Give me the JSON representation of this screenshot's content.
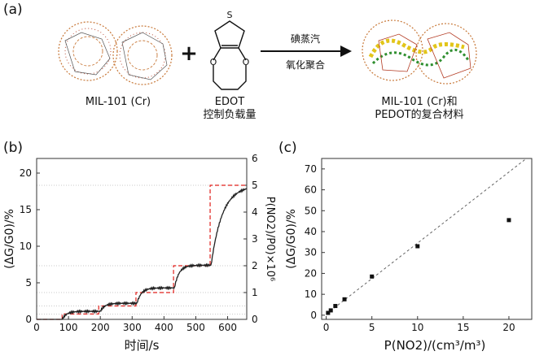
{
  "panels": {
    "a": "(a)",
    "b": "(b)",
    "c": "(c)"
  },
  "scheme": {
    "mof_label": "MIL-101 (Cr)",
    "plus": "+",
    "edot_label": "EDOT",
    "edot_sub": "控制负载量",
    "arrow_top": "碘蒸汽",
    "arrow_bottom": "氧化聚合",
    "product_line1": "MIL-101 (Cr)和",
    "product_line2": "PEDOT的复合材料",
    "atom_s": "S",
    "atom_o1": "O",
    "atom_o2": "O"
  },
  "colors": {
    "trace": "#222222",
    "step": "#e0201c",
    "grid": "#b8b8b8",
    "frame": "#333333",
    "mof_orange": "#c8793a",
    "mof_red": "#b33a22",
    "pedot_yellow": "#e2c51a",
    "pedot_green": "#2f8f2f"
  },
  "chart_data": [
    {
      "type": "line",
      "panel": "(b)",
      "xlabel": "时间/s",
      "ylabel_left": "(ΔG/G0)/%",
      "ylabel_right": "P(NO2)/P0)×10⁶",
      "xlim": [
        0,
        660
      ],
      "ylim_left": [
        0,
        22
      ],
      "ylim_right": [
        0,
        6
      ],
      "xticks": [
        0,
        100,
        200,
        300,
        400,
        500,
        600
      ],
      "yticks_left": [
        0,
        5,
        10,
        15,
        20
      ],
      "yticks_right": [
        0,
        1,
        2,
        3,
        4,
        5,
        6
      ],
      "series": [
        {
          "name": "ΔG/G0",
          "axis": "left",
          "segments": [
            {
              "start": 80,
              "end": 200,
              "level": 1.1
            },
            {
              "start": 200,
              "end": 315,
              "level": 2.2
            },
            {
              "start": 315,
              "end": 433,
              "level": 4.3
            },
            {
              "start": 433,
              "end": 548,
              "level": 7.4
            },
            {
              "start": 548,
              "end": 660,
              "level": 18.3
            }
          ]
        },
        {
          "name": "P(NO2)/P0 ×10⁶",
          "axis": "right",
          "style": "dashed",
          "steps": [
            {
              "x": 0,
              "y": 0
            },
            {
              "x": 80,
              "y": 0.2
            },
            {
              "x": 195,
              "y": 0.5
            },
            {
              "x": 312,
              "y": 1
            },
            {
              "x": 430,
              "y": 2
            },
            {
              "x": 545,
              "y": 5
            },
            {
              "x": 660,
              "y": 5
            }
          ]
        }
      ]
    },
    {
      "type": "scatter",
      "panel": "(c)",
      "xlabel": "P(NO2)/(cm³/m³)",
      "ylabel": "(ΔG/G0)/%",
      "xlim": [
        -0.5,
        22.5
      ],
      "ylim": [
        -2,
        75
      ],
      "xticks": [
        0,
        5,
        10,
        15,
        20
      ],
      "yticks": [
        0,
        10,
        20,
        30,
        40,
        50,
        60,
        70
      ],
      "points": [
        {
          "x": 0.2,
          "y": 1.1
        },
        {
          "x": 0.5,
          "y": 2.3
        },
        {
          "x": 1,
          "y": 4.4
        },
        {
          "x": 2,
          "y": 7.6
        },
        {
          "x": 5,
          "y": 18.5
        },
        {
          "x": 10,
          "y": 33
        },
        {
          "x": 20,
          "y": 45.5
        }
      ],
      "fit_line": {
        "slope": 3.4,
        "intercept": 0.5,
        "style": "dashed"
      }
    }
  ]
}
